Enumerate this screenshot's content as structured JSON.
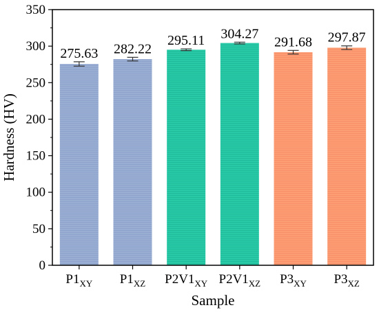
{
  "chart_data": {
    "type": "bar",
    "xlabel": "Sample",
    "ylabel": "Hardness (HV)",
    "ylim": [
      0,
      350
    ],
    "yticks": [
      0,
      50,
      100,
      150,
      200,
      250,
      300,
      350
    ],
    "grid": false,
    "categories": [
      {
        "main": "P1",
        "sub": "XY"
      },
      {
        "main": "P1",
        "sub": "XZ"
      },
      {
        "main": "P2V1",
        "sub": "XY"
      },
      {
        "main": "P2V1",
        "sub": "XZ"
      },
      {
        "main": "P3",
        "sub": "XY"
      },
      {
        "main": "P3",
        "sub": "XZ"
      }
    ],
    "values": [
      275.63,
      282.22,
      295.11,
      304.27,
      291.68,
      297.87
    ],
    "value_labels": [
      "275.63",
      "282.22",
      "295.11",
      "304.27",
      "291.68",
      "297.87"
    ],
    "errors": [
      3,
      2.5,
      1.2,
      1.2,
      2.5,
      2.5
    ],
    "bar_colors": [
      "#9aadd3",
      "#9aadd3",
      "#28c9a6",
      "#28c9a6",
      "#fc9d74",
      "#fc9d74"
    ],
    "bar_stripe_colors": [
      "#8ea3cc",
      "#8ea3cc",
      "#20bc9a",
      "#20bc9a",
      "#f7906a",
      "#f7906a"
    ]
  }
}
